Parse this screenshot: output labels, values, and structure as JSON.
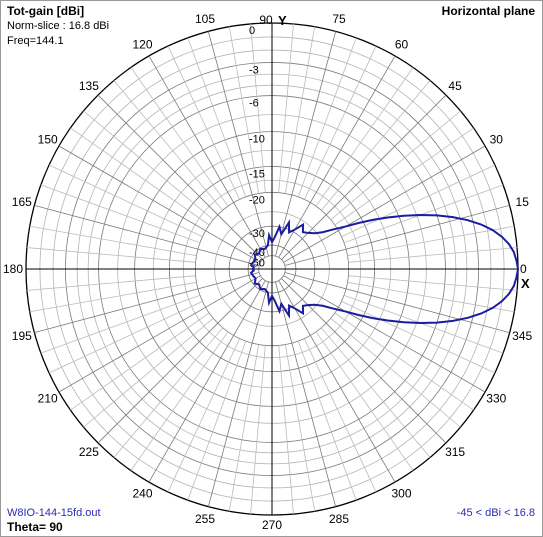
{
  "header": {
    "quantity": "Tot-gain [dBi]",
    "norm_slice": "Norm-slice : 16.8 dBi",
    "freq": "Freq=144.1",
    "plane": "Horizontal plane"
  },
  "footer": {
    "file": "W8IO-144-15fd.out",
    "range": "-45 < dBi < 16.8",
    "theta": "Theta= 90"
  },
  "axis_labels": {
    "y": "Y",
    "x": "X"
  },
  "chart_data": {
    "type": "polar-line",
    "title": "Horizontal plane",
    "radial_unit": "dB relative to 16.8 dBi",
    "radial_ticks": [
      0,
      -3,
      -6,
      -10,
      -15,
      -20,
      -30,
      -40,
      -50
    ],
    "radial_scale": "log-periodic (ARRL)",
    "angle_ticks": [
      0,
      15,
      30,
      45,
      60,
      75,
      90,
      105,
      120,
      135,
      150,
      165,
      180,
      195,
      210,
      225,
      240,
      255,
      270,
      285,
      300,
      315,
      330,
      345
    ],
    "angle_direction": "counter-clockwise, 0 at right",
    "grid": true,
    "line_color": "#1c1ca0",
    "series": [
      {
        "angles": [
          0,
          2,
          4,
          6,
          8,
          10,
          12,
          14,
          16,
          18,
          20,
          22,
          24,
          26,
          28,
          30,
          33,
          36,
          40,
          45,
          50,
          55,
          60,
          65,
          70,
          75,
          80,
          85,
          90,
          95,
          100,
          110,
          120,
          130,
          140,
          150,
          160,
          170,
          175,
          180,
          185,
          190,
          200,
          210,
          220,
          230,
          240,
          250,
          260,
          265,
          270,
          275,
          280,
          285,
          290,
          295,
          300,
          305,
          310,
          315,
          320,
          324,
          327,
          330,
          332,
          334,
          336,
          338,
          340,
          342,
          344,
          346,
          348,
          350,
          352,
          354,
          356,
          358,
          360
        ],
        "db": [
          0,
          -0.1,
          -0.25,
          -0.55,
          -1.0,
          -1.6,
          -2.4,
          -3.4,
          -4.6,
          -6.0,
          -7.6,
          -9.4,
          -11.4,
          -13.5,
          -15.8,
          -18.2,
          -21.0,
          -23.5,
          -25.5,
          -27.0,
          -28.0,
          -26.0,
          -29.0,
          -31.0,
          -27.5,
          -33.0,
          -30.0,
          -35.0,
          -38.0,
          -34.0,
          -40.0,
          -42.0,
          -40.5,
          -43.0,
          -41.0,
          -44.0,
          -43.0,
          -42.0,
          -44.5,
          -43.5,
          -44.5,
          -42.0,
          -43.0,
          -44.0,
          -41.0,
          -43.0,
          -40.5,
          -42.0,
          -40.0,
          -34.0,
          -38.0,
          -35.0,
          -30.0,
          -33.0,
          -27.5,
          -31.0,
          -29.0,
          -26.0,
          -28.0,
          -27.0,
          -25.5,
          -23.5,
          -21.0,
          -18.2,
          -15.8,
          -13.5,
          -11.4,
          -9.4,
          -7.6,
          -6.0,
          -4.6,
          -3.4,
          -2.4,
          -1.6,
          -1.0,
          -0.55,
          -0.25,
          -0.1,
          0
        ]
      }
    ]
  }
}
